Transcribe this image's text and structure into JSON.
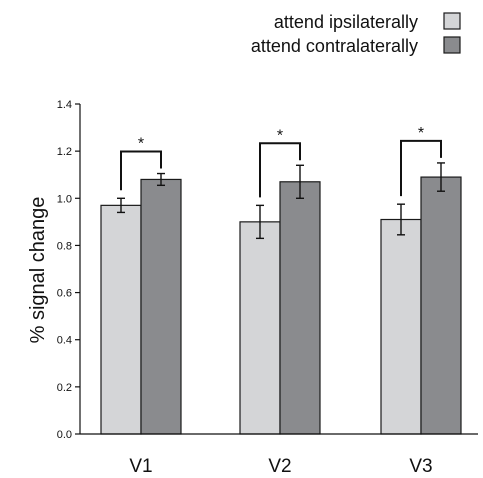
{
  "chart_data": {
    "type": "bar",
    "ylabel": "% signal change",
    "ylim": [
      0,
      1.4
    ],
    "yticks": [
      "0.0",
      "0.2",
      "0.4",
      "0.6",
      "0.8",
      "1.0",
      "1.2",
      "1.4"
    ],
    "categories": [
      "V1",
      "V2",
      "V3"
    ],
    "series": [
      {
        "name": "attend ipsilaterally",
        "color": "#d4d5d7",
        "values": [
          0.97,
          0.9,
          0.91
        ],
        "errors": [
          0.03,
          0.07,
          0.065
        ]
      },
      {
        "name": "attend contralaterally",
        "color": "#8a8b8e",
        "values": [
          1.08,
          1.07,
          1.09
        ],
        "errors": [
          0.025,
          0.07,
          0.06
        ]
      }
    ],
    "significance": [
      "*",
      "*",
      "*"
    ],
    "legend_position": "top-right",
    "grid": false
  }
}
